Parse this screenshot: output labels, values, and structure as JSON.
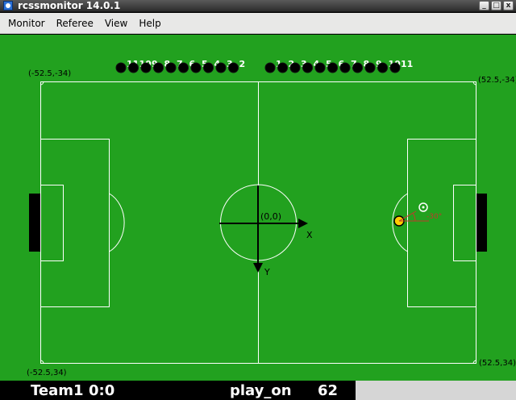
{
  "window": {
    "title": "rcssmonitor 14.0.1",
    "buttons": [
      "_",
      "□",
      "x"
    ]
  },
  "menu": {
    "items": [
      "Monitor",
      "Referee",
      "View",
      "Help"
    ]
  },
  "field": {
    "corner_labels": {
      "top_left": "(-52.5,-34)",
      "top_right": "(52.5,-34)",
      "bottom_left": "(-52.5,34)",
      "bottom_right": "(52.5,34)"
    },
    "origin_label": "(0,0)",
    "x_axis_label": "X",
    "y_axis_label": "Y",
    "angle_label": "-30°",
    "colors": {
      "grass": "#22a11f",
      "lines": "#ffffff",
      "players": "#000000",
      "ball": "#ffcc00",
      "annotation": "#c0392b"
    }
  },
  "left_team_numbers": [
    "11",
    "10",
    "9",
    "8",
    "7",
    "6",
    "5",
    "4",
    "3",
    "2"
  ],
  "right_team_numbers": [
    "1",
    "2",
    "3",
    "4",
    "5",
    "6",
    "7",
    "8",
    "9",
    "10",
    "11"
  ],
  "status": {
    "team": "Team1",
    "score": "0:0",
    "play_mode": "play_on",
    "time": "62"
  }
}
